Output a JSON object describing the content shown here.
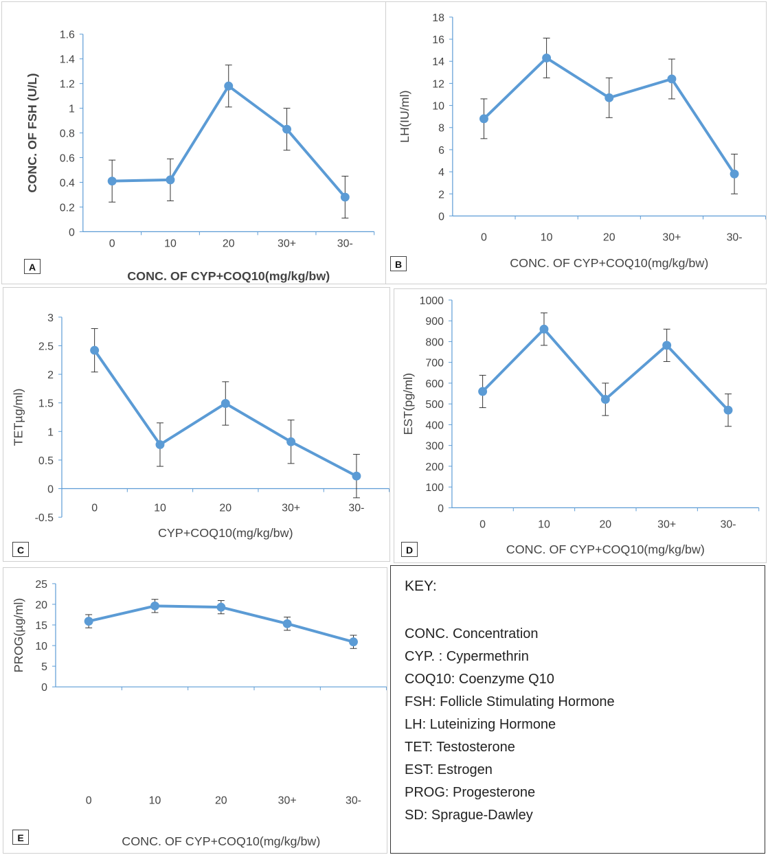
{
  "chart_data": [
    {
      "id": "A",
      "type": "line",
      "panel_label": "A",
      "categories": [
        "0",
        "10",
        "20",
        "30+",
        "30-"
      ],
      "values": [
        0.41,
        0.42,
        1.18,
        0.83,
        0.28
      ],
      "error": [
        0.17,
        0.17,
        0.17,
        0.17,
        0.17
      ],
      "yticks": [
        0,
        0.2,
        0.4,
        0.6,
        0.8,
        1,
        1.2,
        1.4,
        1.6
      ],
      "ylim": [
        0,
        1.6
      ],
      "ylabel": "CONC. OF FSH (U/L)",
      "xlabel": "CONC. OF CYP+COQ10(mg/kg/bw)",
      "color": "#5B9BD5",
      "bold_labels": true
    },
    {
      "id": "B",
      "type": "line",
      "panel_label": "B",
      "categories": [
        "0",
        "10",
        "20",
        "30+",
        "30-"
      ],
      "values": [
        8.8,
        14.3,
        10.7,
        12.4,
        3.8
      ],
      "error": [
        1.8,
        1.8,
        1.8,
        1.8,
        1.8
      ],
      "yticks": [
        0,
        2,
        4,
        6,
        8,
        10,
        12,
        14,
        16,
        18
      ],
      "ylim": [
        0,
        18
      ],
      "ylabel": "LH(IU/ml)",
      "xlabel": "CONC. OF CYP+COQ10(mg/kg/bw)",
      "color": "#5B9BD5",
      "bold_labels": false
    },
    {
      "id": "C",
      "type": "line",
      "panel_label": "C",
      "categories": [
        "0",
        "10",
        "20",
        "30+",
        "30-"
      ],
      "values": [
        2.42,
        0.77,
        1.49,
        0.82,
        0.22
      ],
      "error": [
        0.38,
        0.38,
        0.38,
        0.38,
        0.38
      ],
      "yticks": [
        -0.5,
        0,
        0.5,
        1,
        1.5,
        2,
        2.5,
        3
      ],
      "ylim": [
        -0.5,
        3
      ],
      "ylabel": "TETµg/ml)",
      "xlabel": "CYP+COQ10(mg/kg/bw)",
      "color": "#5B9BD5",
      "bold_labels": false
    },
    {
      "id": "D",
      "type": "line",
      "panel_label": "D",
      "categories": [
        "0",
        "10",
        "20",
        "30+",
        "30-"
      ],
      "values": [
        560,
        860,
        522,
        782,
        470
      ],
      "error": [
        78,
        78,
        78,
        78,
        78
      ],
      "yticks": [
        0,
        100,
        200,
        300,
        400,
        500,
        600,
        700,
        800,
        900,
        1000
      ],
      "ylim": [
        0,
        1000
      ],
      "ylabel": "EST(pg/ml)",
      "xlabel": "CONC. OF CYP+COQ10(mg/kg/bw)",
      "color": "#5B9BD5",
      "bold_labels": false
    },
    {
      "id": "E",
      "type": "line",
      "panel_label": "E",
      "categories": [
        "0",
        "10",
        "20",
        "30+",
        "30-"
      ],
      "values": [
        15.9,
        19.6,
        19.3,
        15.3,
        10.9
      ],
      "error": [
        1.6,
        1.6,
        1.6,
        1.6,
        1.6
      ],
      "yticks": [
        0,
        5,
        10,
        15,
        20,
        25
      ],
      "ylim": [
        0,
        25
      ],
      "ylabel": "PROG(µg/ml)",
      "xlabel": "CONC. OF CYP+COQ10(mg/kg/bw)",
      "color": "#5B9BD5",
      "bold_labels": false
    }
  ],
  "key": {
    "title": "KEY:",
    "items": [
      "CONC. Concentration",
      "CYP. : Cypermethrin",
      "COQ10: Coenzyme Q10",
      "FSH: Follicle Stimulating Hormone",
      "LH: Luteinizing Hormone",
      "TET: Testosterone",
      "EST: Estrogen",
      "PROG: Progesterone",
      "SD: Sprague-Dawley"
    ]
  }
}
